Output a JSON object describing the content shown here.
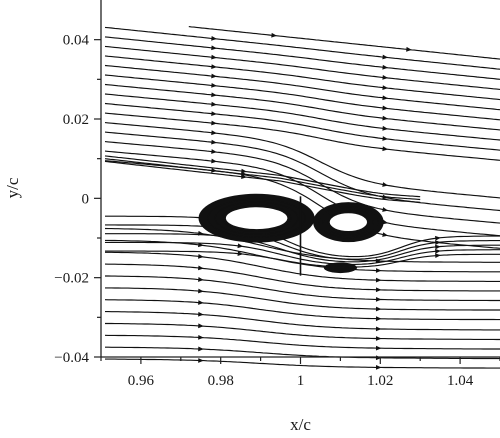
{
  "chart_data": {
    "type": "streamline",
    "title": "",
    "xlabel": "x/c",
    "ylabel": "y/c",
    "xlim": [
      0.95,
      1.05
    ],
    "ylim": [
      -0.04,
      0.05
    ],
    "x_ticks": [
      0.96,
      0.98,
      1.0,
      1.02,
      1.04
    ],
    "x_tick_labels": [
      "0.96",
      "0.98",
      "1",
      "1.02",
      "1.04"
    ],
    "y_ticks": [
      0.04,
      0.02,
      0.0,
      -0.02,
      -0.04
    ],
    "y_tick_labels": [
      "0.04",
      "0.02",
      "0",
      "−0.02",
      "−0.04"
    ],
    "grid": false,
    "flow_direction": "left-to-right",
    "vortices": [
      {
        "name": "upstream recirculation bubble",
        "center": [
          0.989,
          -0.005
        ],
        "half_width": 0.014,
        "half_height": 0.0055
      },
      {
        "name": "upper vortex behind trailing edge",
        "center": [
          1.012,
          -0.006
        ],
        "half_width": 0.0085,
        "half_height": 0.0045
      },
      {
        "name": "lower small vortex",
        "center": [
          1.01,
          -0.0175
        ],
        "half_width": 0.004,
        "half_height": 0.0012
      }
    ],
    "surface_x": 1.0
  }
}
